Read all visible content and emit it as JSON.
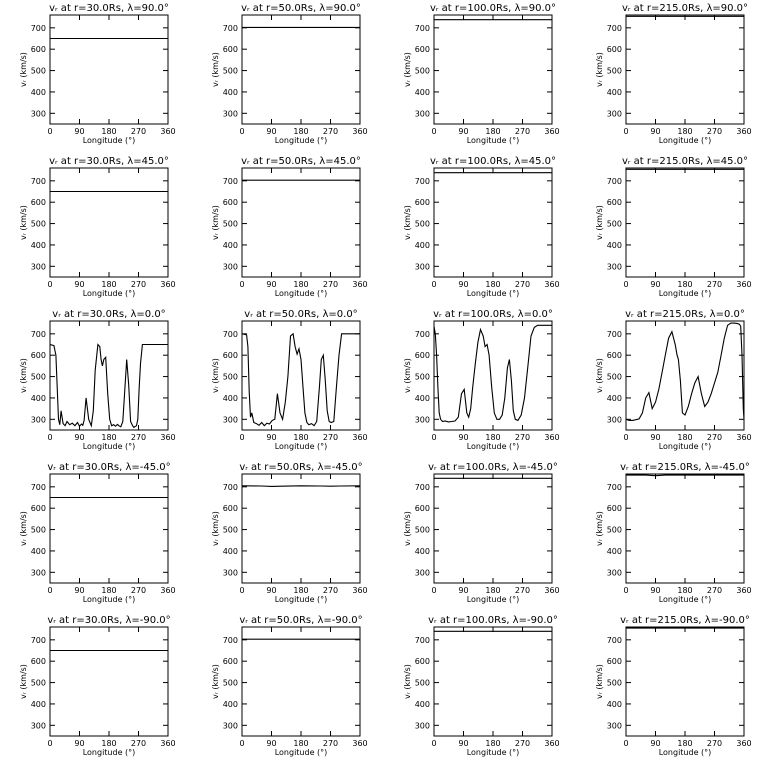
{
  "chart_data": [
    {
      "type": "line",
      "title": "vᵣ at r=30.0Rs, λ=90.0°",
      "xlabel": "Longitude (°)",
      "ylabel": "vᵣ (km/s)",
      "xlim": [
        0,
        360
      ],
      "ylim": [
        250,
        760
      ],
      "xticks": [
        0,
        90,
        180,
        270,
        360
      ],
      "yticks": [
        300,
        400,
        500,
        600,
        700
      ],
      "x": [
        0,
        360
      ],
      "y": [
        650,
        650
      ]
    },
    {
      "type": "line",
      "title": "vᵣ at r=50.0Rs, λ=90.0°",
      "xlabel": "Longitude (°)",
      "ylabel": "vᵣ (km/s)",
      "xlim": [
        0,
        360
      ],
      "ylim": [
        250,
        760
      ],
      "xticks": [
        0,
        90,
        180,
        270,
        360
      ],
      "yticks": [
        300,
        400,
        500,
        600,
        700
      ],
      "x": [
        0,
        360
      ],
      "y": [
        702,
        702
      ]
    },
    {
      "type": "line",
      "title": "vᵣ at r=100.0Rs, λ=90.0°",
      "xlabel": "Longitude (°)",
      "ylabel": "vᵣ (km/s)",
      "xlim": [
        0,
        360
      ],
      "ylim": [
        250,
        760
      ],
      "xticks": [
        0,
        90,
        180,
        270,
        360
      ],
      "yticks": [
        300,
        400,
        500,
        600,
        700
      ],
      "x": [
        0,
        360
      ],
      "y": [
        738,
        738
      ]
    },
    {
      "type": "line",
      "title": "vᵣ at r=215.0Rs, λ=90.0°",
      "xlabel": "Longitude (°)",
      "ylabel": "vᵣ (km/s)",
      "xlim": [
        0,
        360
      ],
      "ylim": [
        250,
        760
      ],
      "xticks": [
        0,
        90,
        180,
        270,
        360
      ],
      "yticks": [
        300,
        400,
        500,
        600,
        700
      ],
      "x": [
        0,
        360
      ],
      "y": [
        754,
        754
      ]
    },
    {
      "type": "line",
      "title": "vᵣ at r=30.0Rs, λ=45.0°",
      "xlabel": "Longitude (°)",
      "ylabel": "vᵣ (km/s)",
      "xlim": [
        0,
        360
      ],
      "ylim": [
        250,
        760
      ],
      "xticks": [
        0,
        90,
        180,
        270,
        360
      ],
      "yticks": [
        300,
        400,
        500,
        600,
        700
      ],
      "x": [
        0,
        360
      ],
      "y": [
        650,
        650
      ]
    },
    {
      "type": "line",
      "title": "vᵣ at r=50.0Rs, λ=45.0°",
      "xlabel": "Longitude (°)",
      "ylabel": "vᵣ (km/s)",
      "xlim": [
        0,
        360
      ],
      "ylim": [
        250,
        760
      ],
      "xticks": [
        0,
        90,
        180,
        270,
        360
      ],
      "yticks": [
        300,
        400,
        500,
        600,
        700
      ],
      "x": [
        0,
        360
      ],
      "y": [
        703,
        703
      ]
    },
    {
      "type": "line",
      "title": "vᵣ at r=100.0Rs, λ=45.0°",
      "xlabel": "Longitude (°)",
      "ylabel": "vᵣ (km/s)",
      "xlim": [
        0,
        360
      ],
      "ylim": [
        250,
        760
      ],
      "xticks": [
        0,
        90,
        180,
        270,
        360
      ],
      "yticks": [
        300,
        400,
        500,
        600,
        700
      ],
      "x": [
        0,
        360
      ],
      "y": [
        738,
        738
      ]
    },
    {
      "type": "line",
      "title": "vᵣ at r=215.0Rs, λ=45.0°",
      "xlabel": "Longitude (°)",
      "ylabel": "vᵣ (km/s)",
      "xlim": [
        0,
        360
      ],
      "ylim": [
        250,
        760
      ],
      "xticks": [
        0,
        90,
        180,
        270,
        360
      ],
      "yticks": [
        300,
        400,
        500,
        600,
        700
      ],
      "x": [
        0,
        360
      ],
      "y": [
        754,
        754
      ]
    },
    {
      "type": "line",
      "title": "vᵣ at r=30.0Rs, λ=0.0°",
      "xlabel": "Longitude (°)",
      "ylabel": "vᵣ (km/s)",
      "xlim": [
        0,
        360
      ],
      "ylim": [
        250,
        760
      ],
      "xticks": [
        0,
        90,
        180,
        270,
        360
      ],
      "yticks": [
        300,
        400,
        500,
        600,
        700
      ],
      "x": [
        0,
        12,
        18,
        22,
        26,
        30,
        34,
        40,
        46,
        52,
        60,
        68,
        76,
        84,
        90,
        96,
        100,
        104,
        110,
        118,
        126,
        132,
        138,
        146,
        152,
        156,
        160,
        164,
        170,
        176,
        182,
        188,
        194,
        200,
        206,
        210,
        216,
        222,
        228,
        234,
        240,
        246,
        252,
        256,
        258,
        264,
        268,
        272,
        276,
        282,
        290,
        298,
        306,
        316,
        326,
        336,
        346,
        356,
        360
      ],
      "y": [
        650,
        645,
        600,
        450,
        300,
        275,
        340,
        280,
        270,
        290,
        275,
        282,
        270,
        285,
        268,
        278,
        272,
        295,
        400,
        300,
        270,
        340,
        530,
        650,
        640,
        580,
        550,
        580,
        590,
        420,
        300,
        270,
        275,
        268,
        276,
        270,
        265,
        290,
        430,
        580,
        460,
        290,
        270,
        262,
        265,
        270,
        300,
        450,
        560,
        650,
        650,
        650,
        650,
        650,
        650,
        650,
        650,
        650,
        650
      ]
    },
    {
      "type": "line",
      "title": "vᵣ at r=50.0Rs, λ=0.0°",
      "xlabel": "Longitude (°)",
      "ylabel": "vᵣ (km/s)",
      "xlim": [
        0,
        360
      ],
      "ylim": [
        250,
        760
      ],
      "xticks": [
        0,
        90,
        180,
        270,
        360
      ],
      "yticks": [
        300,
        400,
        500,
        600,
        700
      ],
      "x": [
        0,
        8,
        14,
        18,
        22,
        26,
        30,
        36,
        44,
        52,
        60,
        68,
        76,
        84,
        92,
        100,
        108,
        116,
        124,
        132,
        140,
        148,
        156,
        162,
        168,
        174,
        180,
        186,
        192,
        198,
        204,
        212,
        220,
        228,
        236,
        242,
        248,
        254,
        260,
        266,
        272,
        280,
        288,
        296,
        304,
        312,
        320,
        330,
        340,
        350,
        360
      ],
      "y": [
        700,
        698,
        695,
        640,
        430,
        310,
        330,
        285,
        280,
        272,
        285,
        270,
        282,
        278,
        295,
        300,
        420,
        330,
        300,
        380,
        500,
        690,
        700,
        640,
        605,
        630,
        580,
        450,
        330,
        285,
        275,
        280,
        270,
        290,
        450,
        580,
        600,
        480,
        340,
        290,
        285,
        290,
        450,
        600,
        700,
        700,
        700,
        700,
        700,
        700,
        700
      ]
    },
    {
      "type": "line",
      "title": "vᵣ at r=100.0Rs, λ=0.0°",
      "xlabel": "Longitude (°)",
      "ylabel": "vᵣ (km/s)",
      "xlim": [
        0,
        360
      ],
      "ylim": [
        250,
        760
      ],
      "xticks": [
        0,
        90,
        180,
        270,
        360
      ],
      "yticks": [
        300,
        400,
        500,
        600,
        700
      ],
      "x": [
        0,
        4,
        8,
        12,
        16,
        20,
        26,
        34,
        44,
        54,
        64,
        74,
        84,
        92,
        100,
        106,
        112,
        118,
        126,
        134,
        142,
        150,
        156,
        162,
        168,
        176,
        184,
        192,
        200,
        208,
        216,
        224,
        230,
        236,
        242,
        248,
        256,
        266,
        276,
        286,
        296,
        306,
        316,
        326,
        336,
        346,
        356,
        360
      ],
      "y": [
        735,
        700,
        600,
        450,
        330,
        300,
        290,
        292,
        288,
        290,
        292,
        310,
        420,
        440,
        330,
        310,
        350,
        450,
        560,
        660,
        720,
        690,
        640,
        650,
        600,
        450,
        330,
        300,
        300,
        320,
        400,
        540,
        580,
        480,
        340,
        300,
        295,
        320,
        400,
        540,
        690,
        730,
        740,
        740,
        740,
        740,
        740,
        740
      ]
    },
    {
      "type": "line",
      "title": "vᵣ at r=215.0Rs, λ=0.0°",
      "xlabel": "Longitude (°)",
      "ylabel": "vᵣ (km/s)",
      "xlim": [
        0,
        360
      ],
      "ylim": [
        250,
        760
      ],
      "xticks": [
        0,
        90,
        180,
        270,
        360
      ],
      "yticks": [
        300,
        400,
        500,
        600,
        700
      ],
      "x": [
        0,
        10,
        20,
        30,
        40,
        50,
        60,
        70,
        80,
        90,
        100,
        110,
        120,
        130,
        140,
        150,
        156,
        160,
        166,
        172,
        180,
        190,
        200,
        210,
        220,
        230,
        240,
        250,
        260,
        270,
        280,
        290,
        300,
        310,
        320,
        330,
        340,
        346,
        350,
        354,
        358,
        360
      ],
      "y": [
        300,
        295,
        295,
        298,
        302,
        330,
        400,
        425,
        350,
        380,
        440,
        520,
        600,
        680,
        710,
        650,
        600,
        580,
        480,
        330,
        320,
        360,
        420,
        470,
        500,
        420,
        360,
        380,
        420,
        470,
        520,
        600,
        680,
        740,
        750,
        750,
        748,
        745,
        735,
        600,
        350,
        300
      ]
    },
    {
      "type": "line",
      "title": "vᵣ at r=30.0Rs, λ=-45.0°",
      "xlabel": "Longitude (°)",
      "ylabel": "vᵣ (km/s)",
      "xlim": [
        0,
        360
      ],
      "ylim": [
        250,
        760
      ],
      "xticks": [
        0,
        90,
        180,
        270,
        360
      ],
      "yticks": [
        300,
        400,
        500,
        600,
        700
      ],
      "x": [
        0,
        360
      ],
      "y": [
        650,
        650
      ]
    },
    {
      "type": "line",
      "title": "vᵣ at r=50.0Rs, λ=-45.0°",
      "xlabel": "Longitude (°)",
      "ylabel": "vᵣ (km/s)",
      "xlim": [
        0,
        360
      ],
      "ylim": [
        250,
        760
      ],
      "xticks": [
        0,
        90,
        180,
        270,
        360
      ],
      "yticks": [
        300,
        400,
        500,
        600,
        700
      ],
      "x": [
        0,
        60,
        90,
        120,
        180,
        240,
        270,
        300,
        360
      ],
      "y": [
        705,
        704,
        702,
        703,
        705,
        704,
        703,
        704,
        705
      ]
    },
    {
      "type": "line",
      "title": "vᵣ at r=100.0Rs, λ=-45.0°",
      "xlabel": "Longitude (°)",
      "ylabel": "vᵣ (km/s)",
      "xlim": [
        0,
        360
      ],
      "ylim": [
        250,
        760
      ],
      "xticks": [
        0,
        90,
        180,
        270,
        360
      ],
      "yticks": [
        300,
        400,
        500,
        600,
        700
      ],
      "x": [
        0,
        360
      ],
      "y": [
        740,
        740
      ]
    },
    {
      "type": "line",
      "title": "vᵣ at r=215.0Rs, λ=-45.0°",
      "xlabel": "Longitude (°)",
      "ylabel": "vᵣ (km/s)",
      "xlim": [
        0,
        360
      ],
      "ylim": [
        250,
        760
      ],
      "xticks": [
        0,
        90,
        180,
        270,
        360
      ],
      "yticks": [
        300,
        400,
        500,
        600,
        700
      ],
      "x": [
        0,
        60,
        90,
        120,
        360
      ],
      "y": [
        755,
        755,
        752,
        755,
        755
      ]
    },
    {
      "type": "line",
      "title": "vᵣ at r=30.0Rs, λ=-90.0°",
      "xlabel": "Longitude (°)",
      "ylabel": "vᵣ (km/s)",
      "xlim": [
        0,
        360
      ],
      "ylim": [
        250,
        760
      ],
      "xticks": [
        0,
        90,
        180,
        270,
        360
      ],
      "yticks": [
        300,
        400,
        500,
        600,
        700
      ],
      "x": [
        0,
        360
      ],
      "y": [
        650,
        650
      ]
    },
    {
      "type": "line",
      "title": "vᵣ at r=50.0Rs, λ=-90.0°",
      "xlabel": "Longitude (°)",
      "ylabel": "vᵣ (km/s)",
      "xlim": [
        0,
        360
      ],
      "ylim": [
        250,
        760
      ],
      "xticks": [
        0,
        90,
        180,
        270,
        360
      ],
      "yticks": [
        300,
        400,
        500,
        600,
        700
      ],
      "x": [
        0,
        360
      ],
      "y": [
        703,
        703
      ]
    },
    {
      "type": "line",
      "title": "vᵣ at r=100.0Rs, λ=-90.0°",
      "xlabel": "Longitude (°)",
      "ylabel": "vᵣ (km/s)",
      "xlim": [
        0,
        360
      ],
      "ylim": [
        250,
        760
      ],
      "xticks": [
        0,
        90,
        180,
        270,
        360
      ],
      "yticks": [
        300,
        400,
        500,
        600,
        700
      ],
      "x": [
        0,
        360
      ],
      "y": [
        740,
        740
      ]
    },
    {
      "type": "line",
      "title": "vᵣ at r=215.0Rs, λ=-90.0°",
      "xlabel": "Longitude (°)",
      "ylabel": "vᵣ (km/s)",
      "xlim": [
        0,
        360
      ],
      "ylim": [
        250,
        760
      ],
      "xticks": [
        0,
        90,
        180,
        270,
        360
      ],
      "yticks": [
        300,
        400,
        500,
        600,
        700
      ],
      "x": [
        0,
        360
      ],
      "y": [
        755,
        755
      ]
    }
  ]
}
